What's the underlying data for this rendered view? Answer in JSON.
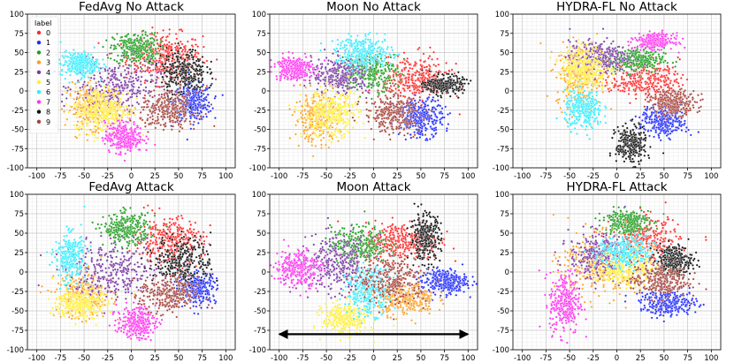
{
  "chart_data": [
    {
      "type": "scatter",
      "title": "FedAvg No Attack",
      "xlim": [
        -110,
        110
      ],
      "ylim": [
        -100,
        100
      ],
      "xticks": [
        "-100",
        "-75",
        "-50",
        "-25",
        "0",
        "25",
        "50",
        "75",
        "100"
      ],
      "yticks": [
        "100",
        "75",
        "50",
        "25",
        "0",
        "-25",
        "-50",
        "-75",
        "-100"
      ],
      "grid": true,
      "clusters": [
        {
          "label": "0",
          "cx": 35,
          "cy": 45,
          "sx": 20,
          "sy": 15,
          "n": 360
        },
        {
          "label": "1",
          "cx": 65,
          "cy": -15,
          "sx": 10,
          "sy": 12,
          "n": 300
        },
        {
          "label": "2",
          "cx": 5,
          "cy": 55,
          "sx": 12,
          "sy": 10,
          "n": 300
        },
        {
          "label": "3",
          "cx": -40,
          "cy": -20,
          "sx": 14,
          "sy": 14,
          "n": 300
        },
        {
          "label": "4",
          "cx": -15,
          "cy": 5,
          "sx": 22,
          "sy": 16,
          "n": 300
        },
        {
          "label": "5",
          "cx": -30,
          "cy": -25,
          "sx": 15,
          "sy": 15,
          "n": 330
        },
        {
          "label": "6",
          "cx": -55,
          "cy": 35,
          "sx": 10,
          "sy": 8,
          "n": 300
        },
        {
          "label": "7",
          "cx": -8,
          "cy": -60,
          "sx": 10,
          "sy": 10,
          "n": 300
        },
        {
          "label": "8",
          "cx": 55,
          "cy": 25,
          "sx": 12,
          "sy": 15,
          "n": 300
        },
        {
          "label": "9",
          "cx": 40,
          "cy": -25,
          "sx": 15,
          "sy": 12,
          "n": 300
        }
      ]
    },
    {
      "type": "scatter",
      "title": "Moon No Attack",
      "xlim": [
        -110,
        110
      ],
      "ylim": [
        -100,
        100
      ],
      "xticks": [
        "-100",
        "-75",
        "-50",
        "-25",
        "0",
        "25",
        "50",
        "75",
        "100"
      ],
      "yticks": [
        "100",
        "75",
        "50",
        "25",
        "0",
        "-25",
        "-50",
        "-75",
        "-100"
      ],
      "grid": true,
      "clusters": [
        {
          "label": "0",
          "cx": 45,
          "cy": 15,
          "sx": 18,
          "sy": 15,
          "n": 330
        },
        {
          "label": "1",
          "cx": 50,
          "cy": -35,
          "sx": 12,
          "sy": 12,
          "n": 300
        },
        {
          "label": "2",
          "cx": -5,
          "cy": 25,
          "sx": 15,
          "sy": 12,
          "n": 300
        },
        {
          "label": "3",
          "cx": -60,
          "cy": -35,
          "sx": 12,
          "sy": 15,
          "n": 300
        },
        {
          "label": "4",
          "cx": -35,
          "cy": 20,
          "sx": 15,
          "sy": 12,
          "n": 300
        },
        {
          "label": "5",
          "cx": -45,
          "cy": -30,
          "sx": 15,
          "sy": 15,
          "n": 330
        },
        {
          "label": "6",
          "cx": -10,
          "cy": 50,
          "sx": 15,
          "sy": 10,
          "n": 300
        },
        {
          "label": "7",
          "cx": -85,
          "cy": 30,
          "sx": 10,
          "sy": 8,
          "n": 280
        },
        {
          "label": "8",
          "cx": 75,
          "cy": 8,
          "sx": 10,
          "sy": 6,
          "n": 280
        },
        {
          "label": "9",
          "cx": 20,
          "cy": -30,
          "sx": 15,
          "sy": 12,
          "n": 300
        }
      ]
    },
    {
      "type": "scatter",
      "title": "HYDRA-FL No Attack",
      "xlim": [
        -110,
        110
      ],
      "ylim": [
        -100,
        100
      ],
      "xticks": [
        "-100",
        "-75",
        "-50",
        "-25",
        "0",
        "25",
        "50",
        "75",
        "100"
      ],
      "yticks": [
        "100",
        "75",
        "50",
        "25",
        "0",
        "-25",
        "-50",
        "-75",
        "-100"
      ],
      "grid": true,
      "clusters": [
        {
          "label": "0",
          "cx": 30,
          "cy": 15,
          "sx": 18,
          "sy": 12,
          "n": 300
        },
        {
          "label": "1",
          "cx": 50,
          "cy": -40,
          "sx": 12,
          "sy": 10,
          "n": 300
        },
        {
          "label": "2",
          "cx": 20,
          "cy": 40,
          "sx": 15,
          "sy": 8,
          "n": 300
        },
        {
          "label": "3",
          "cx": -40,
          "cy": 20,
          "sx": 12,
          "sy": 20,
          "n": 300
        },
        {
          "label": "4",
          "cx": -20,
          "cy": 45,
          "sx": 15,
          "sy": 10,
          "n": 300
        },
        {
          "label": "5",
          "cx": -35,
          "cy": 30,
          "sx": 12,
          "sy": 15,
          "n": 300
        },
        {
          "label": "6",
          "cx": -35,
          "cy": -25,
          "sx": 10,
          "sy": 12,
          "n": 300
        },
        {
          "label": "7",
          "cx": 40,
          "cy": 65,
          "sx": 10,
          "sy": 5,
          "n": 280
        },
        {
          "label": "8",
          "cx": 15,
          "cy": -70,
          "sx": 8,
          "sy": 12,
          "n": 280
        },
        {
          "label": "9",
          "cx": 60,
          "cy": -15,
          "sx": 12,
          "sy": 8,
          "n": 300
        }
      ]
    },
    {
      "type": "scatter",
      "title": "FedAvg Attack",
      "xlim": [
        -110,
        110
      ],
      "ylim": [
        -100,
        100
      ],
      "xticks": [
        "-100",
        "-75",
        "-50",
        "-25",
        "0",
        "25",
        "50",
        "75",
        "100"
      ],
      "yticks": [
        "100",
        "75",
        "50",
        "25",
        "0",
        "-25",
        "-50",
        "-75",
        "-100"
      ],
      "grid": true,
      "clusters": [
        {
          "label": "0",
          "cx": 40,
          "cy": 40,
          "sx": 18,
          "sy": 15,
          "n": 330
        },
        {
          "label": "1",
          "cx": 70,
          "cy": -20,
          "sx": 10,
          "sy": 10,
          "n": 300
        },
        {
          "label": "2",
          "cx": -5,
          "cy": 55,
          "sx": 12,
          "sy": 10,
          "n": 300
        },
        {
          "label": "3",
          "cx": -50,
          "cy": -30,
          "sx": 15,
          "sy": 15,
          "n": 300
        },
        {
          "label": "4",
          "cx": -20,
          "cy": 0,
          "sx": 25,
          "sy": 18,
          "n": 330
        },
        {
          "label": "5",
          "cx": -55,
          "cy": -40,
          "sx": 12,
          "sy": 10,
          "n": 300
        },
        {
          "label": "6",
          "cx": -65,
          "cy": 20,
          "sx": 8,
          "sy": 15,
          "n": 280
        },
        {
          "label": "7",
          "cx": 5,
          "cy": -65,
          "sx": 10,
          "sy": 10,
          "n": 280
        },
        {
          "label": "8",
          "cx": 55,
          "cy": 15,
          "sx": 15,
          "sy": 15,
          "n": 300
        },
        {
          "label": "9",
          "cx": 40,
          "cy": -30,
          "sx": 15,
          "sy": 12,
          "n": 300
        }
      ]
    },
    {
      "type": "scatter",
      "title": "Moon Attack",
      "xlim": [
        -110,
        110
      ],
      "ylim": [
        -100,
        100
      ],
      "xticks": [
        "-100",
        "-75",
        "-50",
        "-25",
        "0",
        "25",
        "50",
        "75",
        "100"
      ],
      "yticks": [
        "100",
        "75",
        "50",
        "25",
        "0",
        "-25",
        "-50",
        "-75",
        "-100"
      ],
      "grid": true,
      "arrow": {
        "from": [
          -100,
          -80
        ],
        "to": [
          100,
          -80
        ],
        "double_headed": true
      },
      "clusters": [
        {
          "label": "0",
          "cx": 30,
          "cy": 40,
          "sx": 20,
          "sy": 12,
          "n": 330
        },
        {
          "label": "1",
          "cx": 75,
          "cy": -12,
          "sx": 12,
          "sy": 8,
          "n": 300
        },
        {
          "label": "2",
          "cx": -15,
          "cy": 35,
          "sx": 15,
          "sy": 12,
          "n": 300
        },
        {
          "label": "3",
          "cx": 35,
          "cy": -35,
          "sx": 15,
          "sy": 10,
          "n": 300
        },
        {
          "label": "4",
          "cx": -40,
          "cy": 10,
          "sx": 20,
          "sy": 18,
          "n": 330
        },
        {
          "label": "5",
          "cx": -30,
          "cy": -60,
          "sx": 12,
          "sy": 10,
          "n": 300
        },
        {
          "label": "6",
          "cx": -5,
          "cy": -25,
          "sx": 12,
          "sy": 15,
          "n": 300
        },
        {
          "label": "7",
          "cx": -80,
          "cy": 5,
          "sx": 12,
          "sy": 12,
          "n": 300
        },
        {
          "label": "8",
          "cx": 55,
          "cy": 45,
          "sx": 8,
          "sy": 15,
          "n": 280
        },
        {
          "label": "9",
          "cx": 20,
          "cy": -10,
          "sx": 18,
          "sy": 15,
          "n": 300
        }
      ]
    },
    {
      "type": "scatter",
      "title": "HYDRA-FL Attack",
      "xlim": [
        -110,
        110
      ],
      "ylim": [
        -100,
        100
      ],
      "xticks": [
        "-100",
        "-75",
        "-50",
        "-25",
        "0",
        "25",
        "50",
        "75",
        "100"
      ],
      "yticks": [
        "100",
        "75",
        "50",
        "25",
        "0",
        "-25",
        "-50",
        "-75",
        "-100"
      ],
      "grid": true,
      "clusters": [
        {
          "label": "0",
          "cx": 30,
          "cy": 40,
          "sx": 18,
          "sy": 15,
          "n": 300
        },
        {
          "label": "1",
          "cx": 55,
          "cy": -40,
          "sx": 15,
          "sy": 8,
          "n": 300
        },
        {
          "label": "2",
          "cx": 10,
          "cy": 65,
          "sx": 12,
          "sy": 8,
          "n": 280
        },
        {
          "label": "3",
          "cx": -20,
          "cy": 10,
          "sx": 20,
          "sy": 20,
          "n": 300
        },
        {
          "label": "4",
          "cx": -20,
          "cy": 20,
          "sx": 15,
          "sy": 15,
          "n": 300
        },
        {
          "label": "5",
          "cx": 10,
          "cy": 5,
          "sx": 15,
          "sy": 12,
          "n": 300
        },
        {
          "label": "6",
          "cx": 10,
          "cy": 25,
          "sx": 15,
          "sy": 10,
          "n": 300
        },
        {
          "label": "7",
          "cx": -55,
          "cy": -40,
          "sx": 8,
          "sy": 20,
          "n": 300
        },
        {
          "label": "8",
          "cx": 60,
          "cy": 15,
          "sx": 10,
          "sy": 10,
          "n": 280
        },
        {
          "label": "9",
          "cx": 45,
          "cy": -10,
          "sx": 15,
          "sy": 12,
          "n": 300
        }
      ]
    }
  ],
  "legend": {
    "title": "label",
    "placement": "top-left",
    "items": [
      {
        "label": "0",
        "color": "#ff2a2a"
      },
      {
        "label": "1",
        "color": "#1f2bff"
      },
      {
        "label": "2",
        "color": "#1f9d1f"
      },
      {
        "label": "3",
        "color": "#ff9f1c"
      },
      {
        "label": "4",
        "color": "#7a3aa3"
      },
      {
        "label": "5",
        "color": "#ffee33"
      },
      {
        "label": "6",
        "color": "#33ecff"
      },
      {
        "label": "7",
        "color": "#ff33f0"
      },
      {
        "label": "8",
        "color": "#111111"
      },
      {
        "label": "9",
        "color": "#a5433a"
      }
    ]
  }
}
